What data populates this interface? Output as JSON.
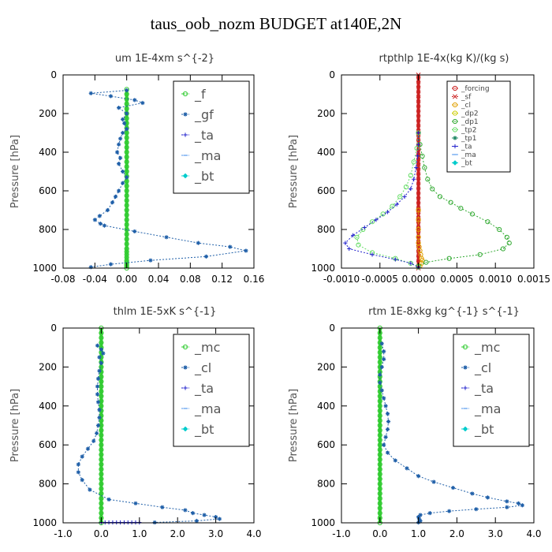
{
  "figure_title": "taus_oob_nozm  BUDGET at140E,2N",
  "chart_data": [
    {
      "type": "line",
      "title": "um   1E-4xm s^{-2}",
      "ylabel": "Pressure [hPa]",
      "ylim": [
        1000,
        0
      ],
      "yticks": [
        "0",
        "200",
        "400",
        "600",
        "800",
        "1000"
      ],
      "yticks_values": [
        0,
        200,
        400,
        600,
        800,
        1000
      ],
      "xlim": [
        -0.08,
        0.16
      ],
      "xticks_values": [
        -0.08,
        -0.04,
        0.0,
        0.04,
        0.08,
        0.12,
        0.16
      ],
      "xticks": [
        "-0.08",
        "-0.04",
        "0.00",
        "0.04",
        "0.08",
        "0.12",
        "0.16"
      ],
      "legend": {
        "placement": "top-right",
        "style": "large"
      },
      "series": [
        {
          "name": "_f",
          "color": "#33cc33",
          "marker": "o",
          "x": [
            0,
            0,
            0,
            0,
            0,
            0,
            0,
            0,
            0,
            0,
            0,
            0,
            0,
            0,
            0,
            0,
            0,
            0,
            0,
            0,
            0,
            0,
            0,
            0,
            0,
            0,
            0,
            0,
            0,
            0,
            0,
            0,
            0,
            0,
            0,
            0,
            0,
            0,
            0,
            0,
            0,
            0
          ],
          "y": [
            75,
            100,
            125,
            150,
            175,
            200,
            225,
            250,
            275,
            300,
            325,
            350,
            375,
            400,
            425,
            450,
            475,
            500,
            525,
            550,
            575,
            600,
            625,
            650,
            675,
            700,
            725,
            750,
            775,
            800,
            825,
            850,
            875,
            900,
            915,
            930,
            945,
            960,
            970,
            980,
            990,
            1000
          ]
        },
        {
          "name": "_gf",
          "color": "#1f5fa8",
          "marker": "*",
          "x": [
            0.0,
            -0.045,
            -0.02,
            0.01,
            0.02,
            -0.01,
            0.0,
            -0.005,
            -0.003,
            0.0,
            -0.005,
            -0.008,
            -0.01,
            -0.012,
            -0.008,
            -0.01,
            -0.005,
            0.0,
            -0.005,
            -0.01,
            -0.014,
            -0.018,
            -0.024,
            -0.034,
            -0.04,
            -0.033,
            -0.028,
            0.01,
            0.05,
            0.09,
            0.13,
            0.15,
            0.1,
            0.03,
            -0.02,
            -0.045
          ],
          "y": [
            80,
            95,
            110,
            130,
            145,
            170,
            200,
            230,
            250,
            280,
            300,
            330,
            360,
            400,
            430,
            460,
            500,
            530,
            560,
            600,
            630,
            660,
            700,
            730,
            750,
            770,
            780,
            810,
            840,
            870,
            890,
            910,
            940,
            960,
            980,
            995
          ]
        },
        {
          "name": "_ta",
          "color": "#2222cc",
          "marker": "+",
          "x": [],
          "y": []
        },
        {
          "name": "_ma",
          "color": "#5599ee",
          "marker": "-",
          "x": [],
          "y": []
        },
        {
          "name": "_bt",
          "color": "#00cccc",
          "marker": "diamond",
          "x": [],
          "y": []
        }
      ]
    },
    {
      "type": "line",
      "title": "rtpthlp   1E-4x(kg K)/(kg s)",
      "ylabel": "Pressure [hPa]",
      "ylim": [
        1000,
        0
      ],
      "yticks": [
        "0",
        "200",
        "400",
        "600",
        "800",
        "1000"
      ],
      "yticks_values": [
        0,
        200,
        400,
        600,
        800,
        1000
      ],
      "xlim": [
        -0.001,
        0.0015
      ],
      "xticks_values": [
        -0.001,
        -0.0005,
        0.0,
        0.0005,
        0.001,
        0.0015
      ],
      "xticks": [
        "-0.0010",
        "-0.0005",
        "0.0000",
        "0.0005",
        "0.0010",
        "0.0015"
      ],
      "legend": {
        "placement": "top-right",
        "style": "small"
      },
      "series": [
        {
          "name": "_forcing",
          "color": "#cc2222",
          "marker": "o",
          "x": [],
          "y": []
        },
        {
          "name": "_sf",
          "color": "#cc2222",
          "marker": "x",
          "x": [
            0,
            0,
            0,
            0,
            0,
            0,
            0,
            0,
            0,
            0,
            0,
            0,
            0,
            0,
            0,
            0,
            0,
            0,
            0,
            0,
            0,
            0,
            0,
            0,
            0,
            0,
            0,
            0,
            0,
            0,
            0,
            0,
            0,
            0,
            0,
            0,
            0,
            0,
            0,
            0,
            0
          ],
          "y": [
            0,
            25,
            50,
            75,
            100,
            125,
            150,
            175,
            200,
            225,
            250,
            275,
            300,
            325,
            350,
            375,
            400,
            425,
            450,
            475,
            500,
            525,
            550,
            575,
            600,
            625,
            650,
            675,
            700,
            725,
            750,
            775,
            800,
            825,
            850,
            875,
            900,
            925,
            950,
            975,
            1000
          ]
        },
        {
          "name": "_cl",
          "color": "#e0a000",
          "marker": "o",
          "x": [
            0,
            0,
            0,
            0,
            0,
            1e-05,
            2e-05,
            3e-05,
            4e-05,
            5e-05,
            4e-05,
            2e-05
          ],
          "y": [
            700,
            750,
            800,
            840,
            870,
            890,
            910,
            930,
            950,
            960,
            975,
            990
          ]
        },
        {
          "name": "_dp2",
          "color": "#cccc00",
          "marker": "o",
          "x": [],
          "y": []
        },
        {
          "name": "_dp1",
          "color": "#33aa33",
          "marker": "o",
          "x": [
            0,
            2e-05,
            5e-05,
            8e-05,
            0.00012,
            0.00018,
            0.00028,
            0.00042,
            0.00055,
            0.0007,
            0.0009,
            0.00105,
            0.00115,
            0.00118,
            0.0011,
            0.0008,
            0.0004,
            0.0001,
            0.0
          ],
          "y": [
            300,
            360,
            420,
            480,
            540,
            590,
            630,
            660,
            690,
            720,
            760,
            800,
            840,
            870,
            900,
            930,
            950,
            970,
            990
          ]
        },
        {
          "name": "_tp2",
          "color": "#66dd66",
          "marker": "o",
          "x": [
            0,
            -2e-05,
            -6e-05,
            -0.0001,
            -0.00016,
            -0.00024,
            -0.00034,
            -0.00046,
            -0.0006,
            -0.00072,
            -0.0008,
            -0.00078,
            -0.0006,
            -0.0003,
            -0.0001,
            0.0
          ],
          "y": [
            300,
            380,
            450,
            520,
            580,
            630,
            680,
            720,
            760,
            800,
            840,
            880,
            920,
            950,
            975,
            995
          ]
        },
        {
          "name": "_tp1",
          "color": "#228866",
          "marker": "*",
          "x": [],
          "y": []
        },
        {
          "name": "_ta",
          "color": "#2222cc",
          "marker": "+",
          "x": [
            0,
            0,
            -1e-05,
            -3e-05,
            -6e-05,
            -0.0001,
            -0.00018,
            -0.00028,
            -0.0004,
            -0.00055,
            -0.0007,
            -0.00085,
            -0.00095,
            -0.0009,
            -0.0006,
            -0.0003,
            -0.0001,
            0.0
          ],
          "y": [
            300,
            360,
            420,
            480,
            540,
            590,
            630,
            670,
            710,
            750,
            790,
            830,
            870,
            900,
            930,
            955,
            975,
            995
          ]
        },
        {
          "name": "_ma",
          "color": "#5599ee",
          "marker": "-",
          "x": [],
          "y": []
        },
        {
          "name": "_bt",
          "color": "#00cccc",
          "marker": "diamond",
          "x": [],
          "y": []
        }
      ]
    },
    {
      "type": "line",
      "title": "thlm   1E-5xK  s^{-1}",
      "ylabel": "Pressure [hPa]",
      "ylim": [
        1000,
        0
      ],
      "yticks": [
        "0",
        "200",
        "400",
        "600",
        "800",
        "1000"
      ],
      "yticks_values": [
        0,
        200,
        400,
        600,
        800,
        1000
      ],
      "xlim": [
        -1.0,
        4.0
      ],
      "xticks_values": [
        -1.0,
        0.0,
        1.0,
        2.0,
        3.0,
        4.0
      ],
      "xticks": [
        "-1.0",
        "0.0",
        "1.0",
        "2.0",
        "3.0",
        "4.0"
      ],
      "legend": {
        "placement": "top-right",
        "style": "large"
      },
      "series": [
        {
          "name": "_mc",
          "color": "#33cc33",
          "marker": "o",
          "x": [
            0,
            0,
            0,
            0,
            0,
            0,
            0,
            0,
            0,
            0,
            0,
            0,
            0,
            0,
            0,
            0,
            0,
            0,
            0,
            0,
            0,
            0,
            0,
            0,
            0,
            0,
            0,
            0,
            0,
            0,
            0,
            0,
            0,
            0,
            0,
            0,
            0,
            0,
            0,
            0,
            0
          ],
          "y": [
            0,
            25,
            50,
            75,
            100,
            125,
            150,
            175,
            200,
            225,
            250,
            275,
            300,
            325,
            350,
            375,
            400,
            425,
            450,
            475,
            500,
            525,
            550,
            575,
            600,
            625,
            650,
            675,
            700,
            725,
            750,
            775,
            800,
            825,
            850,
            875,
            900,
            925,
            950,
            975,
            1000
          ]
        },
        {
          "name": "_cl",
          "color": "#1f5fa8",
          "marker": "*",
          "x": [
            -0.1,
            0.0,
            0.05,
            -0.05,
            0.0,
            -0.05,
            -0.08,
            -0.1,
            -0.1,
            -0.08,
            -0.05,
            -0.05,
            -0.08,
            -0.12,
            -0.2,
            -0.35,
            -0.5,
            -0.6,
            -0.6,
            -0.5,
            -0.3,
            0.2,
            0.9,
            1.6,
            2.2,
            2.4,
            2.7,
            3.0,
            3.1,
            2.5,
            1.4
          ],
          "y": [
            90,
            110,
            130,
            150,
            180,
            220,
            260,
            300,
            340,
            380,
            420,
            460,
            500,
            540,
            580,
            620,
            660,
            700,
            740,
            780,
            830,
            880,
            900,
            920,
            935,
            950,
            960,
            970,
            980,
            990,
            998
          ]
        },
        {
          "name": "_ta",
          "color": "#2222cc",
          "marker": "+",
          "x": [
            0,
            0.1,
            0.2,
            0.3,
            0.4,
            0.5,
            0.6,
            0.7,
            0.8,
            0.9,
            1.0
          ],
          "y": [
            998,
            998,
            998,
            998,
            998,
            998,
            998,
            998,
            998,
            998,
            998
          ]
        },
        {
          "name": "_ma",
          "color": "#5599ee",
          "marker": "-",
          "x": [],
          "y": []
        },
        {
          "name": "_bt",
          "color": "#00cccc",
          "marker": "diamond",
          "x": [],
          "y": []
        }
      ]
    },
    {
      "type": "line",
      "title": "rtm   1E-8xkg  kg^{-1} s^{-1}",
      "ylabel": "Pressure [hPa]",
      "ylim": [
        1000,
        0
      ],
      "yticks": [
        "0",
        "200",
        "400",
        "600",
        "800",
        "1000"
      ],
      "yticks_values": [
        0,
        200,
        400,
        600,
        800,
        1000
      ],
      "xlim": [
        -1.0,
        4.0
      ],
      "xticks_values": [
        -1.0,
        0.0,
        1.0,
        2.0,
        3.0,
        4.0
      ],
      "xticks": [
        "-1.0",
        "0.0",
        "1.0",
        "2.0",
        "3.0",
        "4.0"
      ],
      "legend": {
        "placement": "top-right",
        "style": "large"
      },
      "series": [
        {
          "name": "_mc",
          "color": "#33cc33",
          "marker": "o",
          "x": [
            0,
            0,
            0,
            0,
            0,
            0,
            0,
            0,
            0,
            0,
            0,
            0,
            0,
            0,
            0,
            0,
            0,
            0,
            0,
            0,
            0,
            0,
            0,
            0,
            0,
            0,
            0,
            0,
            0,
            0,
            0,
            0,
            0,
            0,
            0,
            0,
            0,
            0,
            0,
            0,
            0
          ],
          "y": [
            0,
            25,
            50,
            75,
            100,
            125,
            150,
            175,
            200,
            225,
            250,
            275,
            300,
            325,
            350,
            375,
            400,
            425,
            450,
            475,
            500,
            525,
            550,
            575,
            600,
            625,
            650,
            675,
            700,
            725,
            750,
            775,
            800,
            825,
            850,
            875,
            900,
            925,
            950,
            975,
            1000
          ]
        },
        {
          "name": "_cl",
          "color": "#1f5fa8",
          "marker": "*",
          "x": [
            0.05,
            0.1,
            0.1,
            0.05,
            0.0,
            0.0,
            0.05,
            0.1,
            0.15,
            0.2,
            0.22,
            0.2,
            0.15,
            0.1,
            0.2,
            0.4,
            0.7,
            1.0,
            1.4,
            1.9,
            2.4,
            2.8,
            3.3,
            3.6,
            3.7,
            3.3,
            2.5,
            1.8,
            1.3,
            1.05,
            1.0,
            1.02,
            1.05,
            1.0
          ],
          "y": [
            80,
            120,
            160,
            200,
            240,
            280,
            320,
            360,
            400,
            440,
            480,
            520,
            560,
            600,
            640,
            680,
            720,
            760,
            790,
            820,
            850,
            870,
            890,
            900,
            910,
            920,
            930,
            940,
            950,
            960,
            970,
            980,
            990,
            998
          ]
        },
        {
          "name": "_ta",
          "color": "#2222cc",
          "marker": "+",
          "x": [],
          "y": []
        },
        {
          "name": "_ma",
          "color": "#5599ee",
          "marker": "-",
          "x": [],
          "y": []
        },
        {
          "name": "_bt",
          "color": "#00cccc",
          "marker": "diamond",
          "x": [],
          "y": []
        }
      ]
    }
  ]
}
